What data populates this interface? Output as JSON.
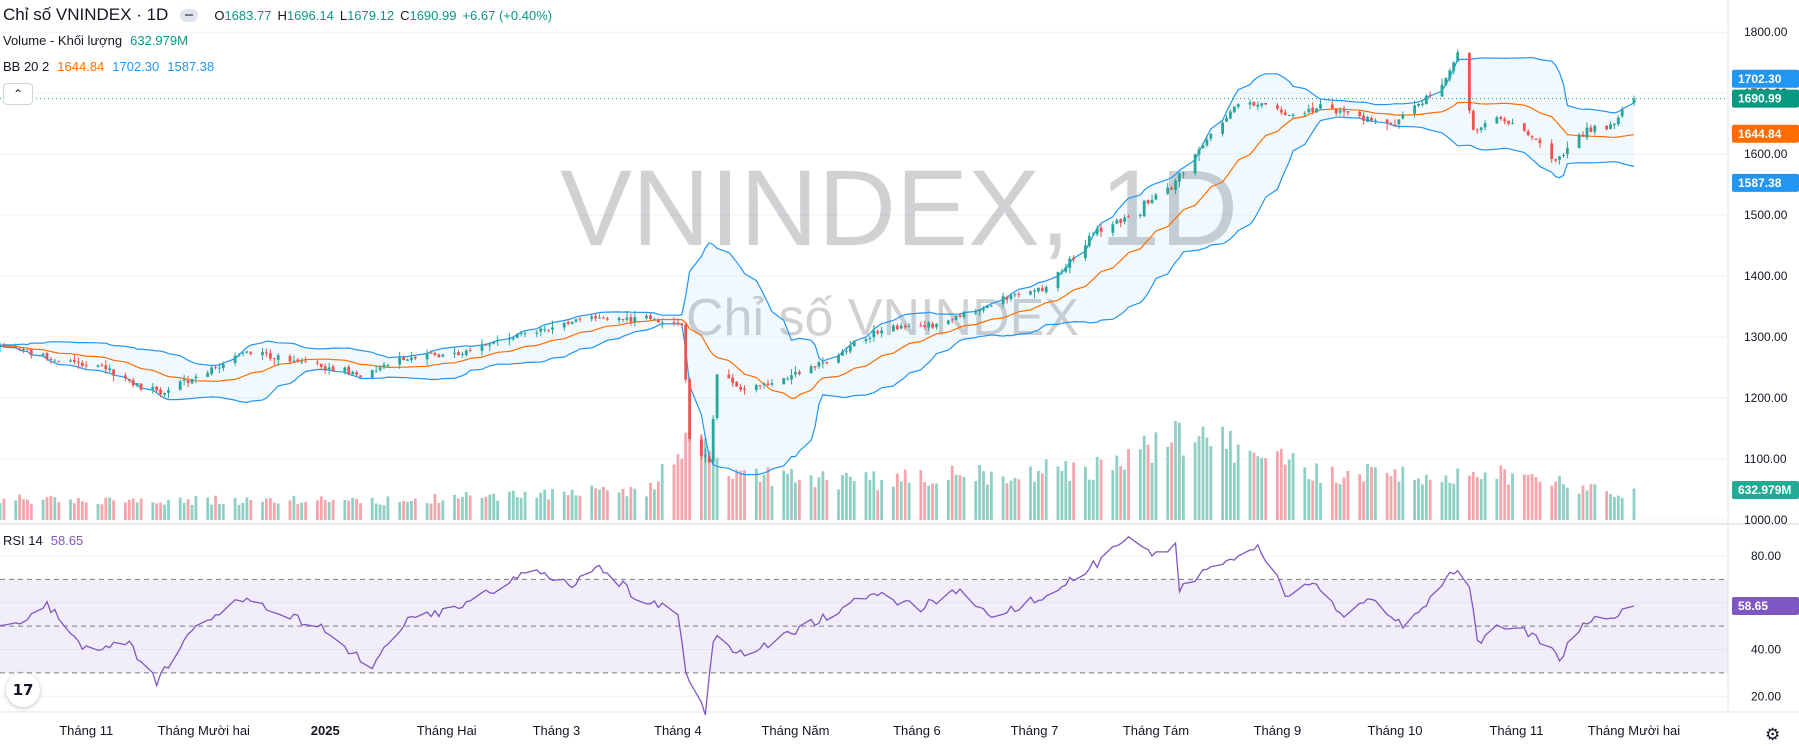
{
  "legend": {
    "title": "Chỉ số VNINDEX · 1D",
    "open_label": "O",
    "open": "1683.77",
    "high_label": "H",
    "high": "1696.14",
    "low_label": "L",
    "low": "1679.12",
    "close_label": "C",
    "close": "1690.99",
    "change": "+6.67 (+0.40%)",
    "volume_label": "Volume - Khối lượng",
    "volume": "632.979M",
    "bb_label": "BB 20 2",
    "bb_basis": "1644.84",
    "bb_upper": "1702.30",
    "bb_lower": "1587.38",
    "rsi_label": "RSI 14",
    "rsi": "58.65"
  },
  "watermark": {
    "symbol": "VNINDEX, 1D",
    "name": "Chỉ số VNINDEX"
  },
  "badges": {
    "bb_upper": "1702.30",
    "close": "1690.99",
    "bb_basis": "1644.84",
    "bb_lower": "1587.38",
    "volume": "632.979M",
    "rsi": "58.65"
  },
  "colors": {
    "up": "#26a69a",
    "down": "#ef5350",
    "vol_up": "#8fd0c4",
    "vol_down": "#f5a6ad",
    "bb_band": "#2196f3",
    "bb_basis": "#ff6d00",
    "rsi": "#7e57c2",
    "last_price": "#089981"
  },
  "icons": {
    "logo": "tradingview-logo-icon",
    "settings": "gear-icon",
    "collapse": "chevron-up-icon"
  },
  "logo_text": "17",
  "settings_glyph": "⚙",
  "collapse_glyph": "⌃",
  "chart_data": [
    {
      "type": "candlestick",
      "title": "Chỉ số VNINDEX · 1D",
      "x_ticks": [
        "Tháng 11",
        "Tháng Mười hai",
        "2025",
        "Tháng Hai",
        "Tháng 3",
        "Tháng 4",
        "Tháng Năm",
        "Tháng 6",
        "Tháng 7",
        "Tháng Tám",
        "Tháng 9",
        "Tháng 10",
        "Tháng 11",
        "Tháng Mười hai"
      ],
      "y_ticks": [
        "1000.00",
        "1100.00",
        "1200.00",
        "1300.00",
        "1400.00",
        "1500.00",
        "1600.00",
        "1700.00",
        "1800.00"
      ],
      "ylim": [
        1000,
        1820
      ],
      "close_path": [
        [
          "2024-10-14",
          1282
        ],
        [
          "2024-10-25",
          1262
        ],
        [
          "2024-11-05",
          1252
        ],
        [
          "2024-11-15",
          1218
        ],
        [
          "2024-11-20",
          1210
        ],
        [
          "2024-12-02",
          1243
        ],
        [
          "2024-12-12",
          1276
        ],
        [
          "2024-12-23",
          1262
        ],
        [
          "2025-01-06",
          1245
        ],
        [
          "2025-01-10",
          1235
        ],
        [
          "2025-01-20",
          1265
        ],
        [
          "2025-02-05",
          1275
        ],
        [
          "2025-02-20",
          1305
        ],
        [
          "2025-03-10",
          1330
        ],
        [
          "2025-03-25",
          1330
        ],
        [
          "2025-04-02",
          1317
        ],
        [
          "2025-04-03",
          1229
        ],
        [
          "2025-04-04",
          1132
        ],
        [
          "2025-04-09",
          1095
        ],
        [
          "2025-04-11",
          1240
        ],
        [
          "2025-04-18",
          1215
        ],
        [
          "2025-04-25",
          1225
        ],
        [
          "2025-05-09",
          1262
        ],
        [
          "2025-05-23",
          1315
        ],
        [
          "2025-06-06",
          1320
        ],
        [
          "2025-06-16",
          1345
        ],
        [
          "2025-06-25",
          1368
        ],
        [
          "2025-07-04",
          1380
        ],
        [
          "2025-07-16",
          1470
        ],
        [
          "2025-07-28",
          1505
        ],
        [
          "2025-07-29",
          1520
        ],
        [
          "2025-08-05",
          1545
        ],
        [
          "2025-08-15",
          1638
        ],
        [
          "2025-08-22",
          1680
        ],
        [
          "2025-08-29",
          1683
        ],
        [
          "2025-09-05",
          1660
        ],
        [
          "2025-09-12",
          1678
        ],
        [
          "2025-09-22",
          1658
        ],
        [
          "2025-10-01",
          1650
        ],
        [
          "2025-10-14",
          1720
        ],
        [
          "2025-10-17",
          1770
        ],
        [
          "2025-10-21",
          1640
        ],
        [
          "2025-10-28",
          1658
        ],
        [
          "2025-11-05",
          1630
        ],
        [
          "2025-11-11",
          1590
        ],
        [
          "2025-11-19",
          1640
        ],
        [
          "2025-11-25",
          1645
        ],
        [
          "2025-12-01",
          1690.99
        ]
      ],
      "last_ohlc": {
        "open": 1683.77,
        "high": 1696.14,
        "low": 1679.12,
        "close": 1690.99
      },
      "bollinger": {
        "length": 20,
        "mult": 2,
        "basis": 1644.84,
        "upper": 1702.3,
        "lower": 1587.38
      }
    },
    {
      "type": "bar",
      "title": "Volume - Khối lượng",
      "last_value": "632.979M",
      "relative_levels": [
        [
          "2024-10-14",
          0.3
        ],
        [
          "2025-01-20",
          0.28
        ],
        [
          "2025-03-25",
          0.45
        ],
        [
          "2025-04-04",
          1.15
        ],
        [
          "2025-04-08",
          0.95
        ],
        [
          "2025-04-15",
          0.7
        ],
        [
          "2025-05-15",
          0.55
        ],
        [
          "2025-07-16",
          0.75
        ],
        [
          "2025-08-08",
          1.2
        ],
        [
          "2025-08-29",
          1.0
        ],
        [
          "2025-09-12",
          0.65
        ],
        [
          "2025-10-20",
          0.7
        ],
        [
          "2025-11-20",
          0.45
        ],
        [
          "2025-12-01",
          0.38
        ]
      ]
    },
    {
      "type": "line",
      "title": "RSI 14",
      "y_ticks": [
        "20.00",
        "40.00",
        "60.00",
        "80.00"
      ],
      "ylim": [
        15,
        92
      ],
      "bands": [
        30,
        50,
        70
      ],
      "last_value": 58.65,
      "points": [
        [
          "2024-10-14",
          50
        ],
        [
          "2024-10-22",
          59
        ],
        [
          "2024-11-01",
          40
        ],
        [
          "2024-11-12",
          42
        ],
        [
          "2024-11-19",
          26
        ],
        [
          "2024-11-27",
          46
        ],
        [
          "2024-12-05",
          55
        ],
        [
          "2024-12-12",
          63
        ],
        [
          "2024-12-20",
          56
        ],
        [
          "2025-01-03",
          47
        ],
        [
          "2025-01-08",
          38
        ],
        [
          "2025-01-13",
          33
        ],
        [
          "2025-01-22",
          52
        ],
        [
          "2025-02-05",
          58
        ],
        [
          "2025-02-17",
          70
        ],
        [
          "2025-02-25",
          73
        ],
        [
          "2025-03-05",
          68
        ],
        [
          "2025-03-12",
          76
        ],
        [
          "2025-03-21",
          63
        ],
        [
          "2025-04-01",
          55
        ],
        [
          "2025-04-03",
          30
        ],
        [
          "2025-04-08",
          14
        ],
        [
          "2025-04-10",
          45
        ],
        [
          "2025-04-18",
          38
        ],
        [
          "2025-05-06",
          52
        ],
        [
          "2025-05-20",
          64
        ],
        [
          "2025-06-02",
          58
        ],
        [
          "2025-06-12",
          66
        ],
        [
          "2025-06-20",
          54
        ],
        [
          "2025-07-02",
          62
        ],
        [
          "2025-07-18",
          78
        ],
        [
          "2025-07-25",
          88
        ],
        [
          "2025-08-01",
          80
        ],
        [
          "2025-08-06",
          86
        ],
        [
          "2025-08-07",
          65
        ],
        [
          "2025-08-14",
          74
        ],
        [
          "2025-08-22",
          80
        ],
        [
          "2025-08-27",
          84
        ],
        [
          "2025-09-03",
          64
        ],
        [
          "2025-09-10",
          70
        ],
        [
          "2025-09-18",
          53
        ],
        [
          "2025-09-25",
          62
        ],
        [
          "2025-10-03",
          51
        ],
        [
          "2025-10-10",
          61
        ],
        [
          "2025-10-16",
          74
        ],
        [
          "2025-10-20",
          68
        ],
        [
          "2025-10-22",
          43
        ],
        [
          "2025-10-28",
          50
        ],
        [
          "2025-11-05",
          47
        ],
        [
          "2025-11-12",
          37
        ],
        [
          "2025-11-19",
          52
        ],
        [
          "2025-11-26",
          54
        ],
        [
          "2025-12-01",
          58.65
        ]
      ]
    }
  ]
}
